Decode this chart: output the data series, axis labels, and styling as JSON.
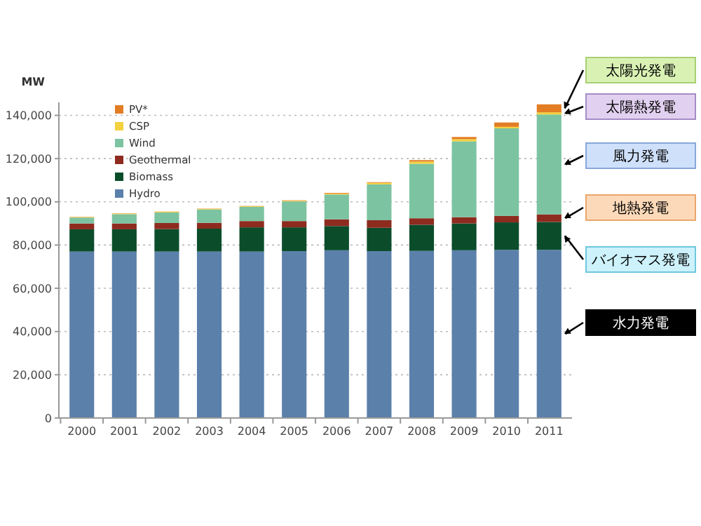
{
  "chart_data": {
    "type": "bar",
    "stacked": true,
    "ylabel": "MW",
    "categories": [
      "2000",
      "2001",
      "2002",
      "2003",
      "2004",
      "2005",
      "2006",
      "2007",
      "2008",
      "2009",
      "2010",
      "2011"
    ],
    "series": [
      {
        "name": "Hydro",
        "color": "#5b80aa",
        "values": [
          77000,
          77000,
          77000,
          77000,
          77000,
          77200,
          77600,
          77200,
          77300,
          77600,
          77800,
          77800
        ]
      },
      {
        "name": "Biomass",
        "color": "#0b4d2b",
        "values": [
          10300,
          10300,
          10400,
          10600,
          11200,
          11000,
          11200,
          10800,
          12100,
          12400,
          12700,
          12900
        ]
      },
      {
        "name": "Geothermal",
        "color": "#8e2b1f",
        "values": [
          2700,
          2700,
          2800,
          2700,
          2900,
          2900,
          3100,
          3500,
          3000,
          2900,
          3000,
          3500
        ]
      },
      {
        "name": "Wind",
        "color": "#7cc3a1",
        "values": [
          2700,
          4300,
          4900,
          6200,
          6600,
          9100,
          11500,
          16600,
          25200,
          35100,
          40500,
          46200
        ]
      },
      {
        "name": "CSP",
        "color": "#f3d13c",
        "values": [
          300,
          300,
          300,
          300,
          300,
          300,
          400,
          700,
          1000,
          1000,
          700,
          1000
        ]
      },
      {
        "name": "PV*",
        "color": "#e27d24",
        "values": [
          100,
          100,
          100,
          100,
          100,
          200,
          300,
          300,
          700,
          1000,
          2000,
          3700
        ]
      }
    ],
    "ylim": [
      0,
      146000
    ],
    "yticks": [
      {
        "value": 0,
        "label": "0"
      },
      {
        "value": 20000,
        "label": "20,000"
      },
      {
        "value": 40000,
        "label": "40,000"
      },
      {
        "value": 60000,
        "label": "60,000"
      },
      {
        "value": 80000,
        "label": "80,000"
      },
      {
        "value": 100000,
        "label": "100,000"
      },
      {
        "value": 120000,
        "label": "120,000"
      },
      {
        "value": 140000,
        "label": "140,000"
      }
    ],
    "grid": "y",
    "legend": "top left",
    "annotations": [
      "太陽光発電",
      "太陽熱発電",
      "風力発電",
      "地熱発電",
      "バイオマス発電",
      "水力発電"
    ]
  }
}
